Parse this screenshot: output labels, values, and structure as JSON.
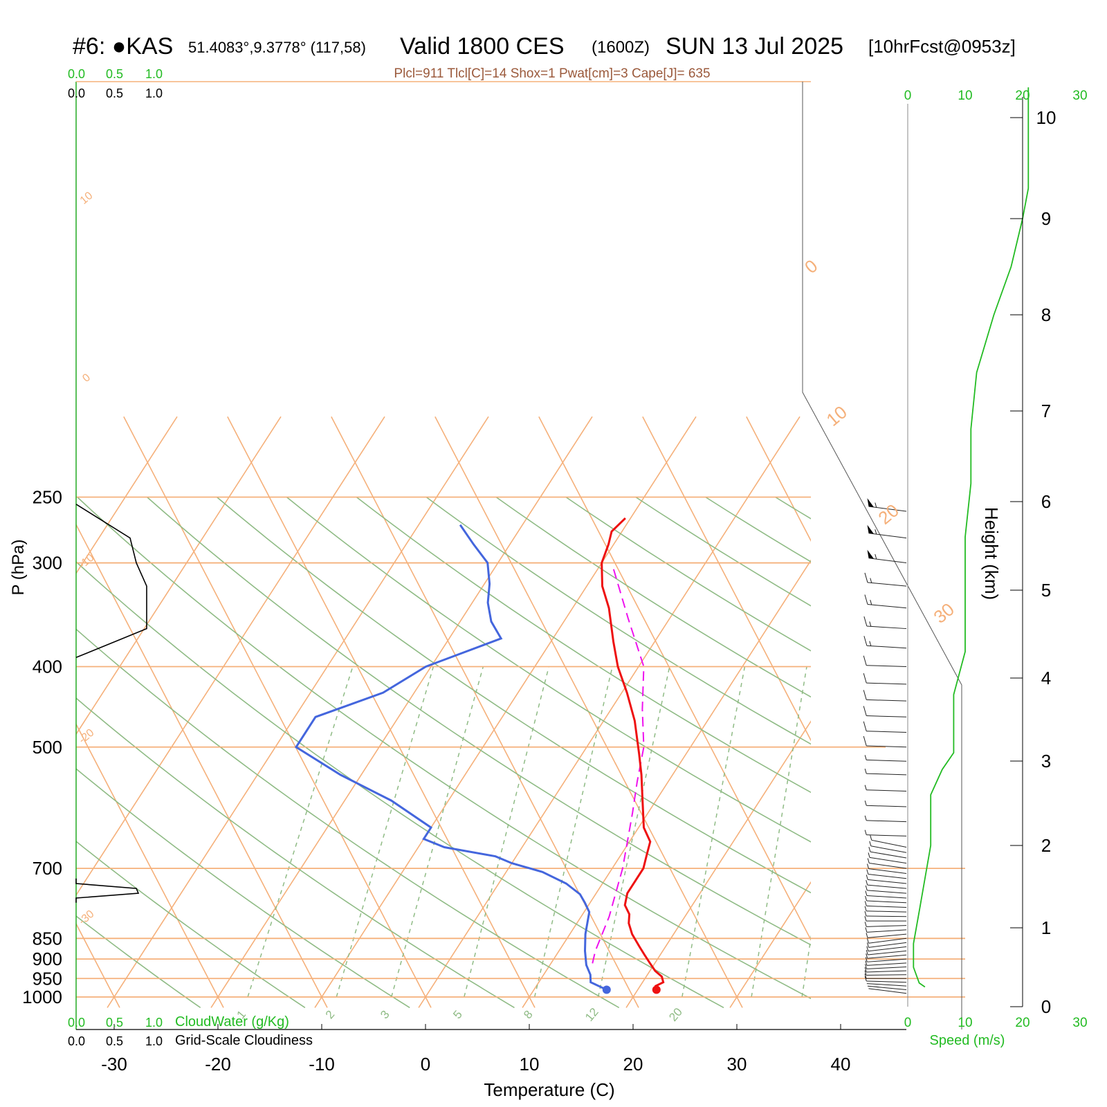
{
  "header": {
    "station": "#6: ●KAS",
    "coords": "51.4083°,9.3778° (117,58)",
    "valid": "Valid 1800 CES",
    "utc": "(1600Z)",
    "date": "SUN 13 Jul 2025",
    "forecast": "[10hrFcst@0953z]",
    "indices": "Plcl=911 Tlcl[C]=14 Shox=1 Pwat[cm]=3 Cape[J]= 635"
  },
  "colors": {
    "temperature": "#ee1111",
    "dewpoint": "#4466dd",
    "parcel": "#ee11ee",
    "isotherm": "#f5b07a",
    "dry_adiabat": "#8fbb85",
    "wind_speed": "#22bb22",
    "cloud": "#000000"
  },
  "cloud_scale": {
    "top_green": [
      "0.0",
      "0.5",
      "1.0"
    ],
    "top_black": [
      "0.0",
      "0.5",
      "1.0"
    ],
    "bottom_green": [
      "0.0",
      "0.5",
      "1.0"
    ],
    "bottom_black": [
      "0.0",
      "0.5",
      "1.0"
    ],
    "cloudwater_label": "CloudWater (g/Kg)",
    "cloudiness_label": "Grid-Scale Cloudiness"
  },
  "speed_scale": {
    "ticks": [
      "0",
      "10",
      "20",
      "30"
    ],
    "label": "Speed (m/s)"
  },
  "chart_data": {
    "type": "line",
    "subtype": "skew-T log-P sounding",
    "xlabel": "Temperature (C)",
    "ylabel": "P (hPa)",
    "y2label": "Height (km)",
    "x_ticks": [
      "-30",
      "-20",
      "-10",
      "0",
      "10",
      "20",
      "30",
      "40"
    ],
    "y_ticks": [
      "250",
      "300",
      "400",
      "500",
      "700",
      "850",
      "900",
      "950",
      "1000"
    ],
    "height_ticks": [
      "0",
      "1",
      "2",
      "3",
      "4",
      "5",
      "6",
      "7",
      "8",
      "9",
      "10"
    ],
    "isotherm_labels": [
      "10",
      "0",
      "-10",
      "-20",
      "-30",
      "0",
      "10",
      "20",
      "30"
    ],
    "mixing_ratio_labels": [
      "1",
      "2",
      "3",
      "5",
      "8",
      "12",
      "20"
    ],
    "xlim": [
      -33,
      36
    ],
    "ylim": [
      1030,
      250
    ],
    "series": [
      {
        "key": "temperature",
        "points": [
          [
            21.8,
            980
          ],
          [
            21.5,
            970
          ],
          [
            22.0,
            960
          ],
          [
            21.5,
            945
          ],
          [
            20.5,
            930
          ],
          [
            19.5,
            910
          ],
          [
            18.5,
            890
          ],
          [
            17.5,
            870
          ],
          [
            16.0,
            840
          ],
          [
            15.0,
            815
          ],
          [
            14.5,
            795
          ],
          [
            13.5,
            775
          ],
          [
            13.0,
            750
          ],
          [
            13.0,
            725
          ],
          [
            13.0,
            700
          ],
          [
            12.5,
            675
          ],
          [
            12.0,
            650
          ],
          [
            10.5,
            625
          ],
          [
            8.5,
            575
          ],
          [
            7.0,
            540
          ],
          [
            5.5,
            510
          ],
          [
            3.0,
            465
          ],
          [
            0.5,
            430
          ],
          [
            -2.0,
            400
          ],
          [
            -4.0,
            373
          ],
          [
            -6.5,
            340
          ],
          [
            -8.5,
            320
          ],
          [
            -10.0,
            300
          ],
          [
            -10.5,
            285
          ],
          [
            -11.0,
            275
          ],
          [
            -10.5,
            265
          ]
        ]
      },
      {
        "key": "dewpoint",
        "points": [
          [
            17.0,
            980
          ],
          [
            16.5,
            975
          ],
          [
            15.5,
            965
          ],
          [
            15.0,
            960
          ],
          [
            14.5,
            940
          ],
          [
            13.5,
            915
          ],
          [
            12.5,
            880
          ],
          [
            11.5,
            840
          ],
          [
            10.5,
            790
          ],
          [
            9.5,
            770
          ],
          [
            8.5,
            752
          ],
          [
            6.5,
            730
          ],
          [
            3.5,
            707
          ],
          [
            0.0,
            690
          ],
          [
            -2.0,
            677
          ],
          [
            -7.5,
            660
          ],
          [
            -10.0,
            645
          ],
          [
            -10.0,
            625
          ],
          [
            -15.5,
            580
          ],
          [
            -22.0,
            540
          ],
          [
            -28.0,
            500
          ],
          [
            -28.0,
            460
          ],
          [
            -23.0,
            430
          ],
          [
            -20.5,
            400
          ],
          [
            -15.0,
            370
          ],
          [
            -17.0,
            353
          ],
          [
            -18.5,
            335
          ],
          [
            -19.5,
            318
          ],
          [
            -21.0,
            300
          ],
          [
            -23.5,
            285
          ],
          [
            -26.0,
            270
          ]
        ]
      },
      {
        "key": "parcel",
        "points": [
          [
            14.0,
            911
          ],
          [
            13.5,
            880
          ],
          [
            12.7,
            800
          ],
          [
            11.0,
            700
          ],
          [
            9.8,
            650
          ],
          [
            8.5,
            600
          ],
          [
            7.0,
            550
          ],
          [
            5.5,
            500
          ],
          [
            3.0,
            450
          ],
          [
            0.5,
            400
          ],
          [
            -4.0,
            350
          ],
          [
            -8.5,
            305
          ]
        ]
      }
    ],
    "wind_barbs": [
      {
        "p": 990,
        "dir": 290,
        "spd": 3
      },
      {
        "p": 980,
        "dir": 285,
        "spd": 4
      },
      {
        "p": 970,
        "dir": 280,
        "spd": 4
      },
      {
        "p": 960,
        "dir": 275,
        "spd": 5
      },
      {
        "p": 950,
        "dir": 270,
        "spd": 5
      },
      {
        "p": 940,
        "dir": 268,
        "spd": 5
      },
      {
        "p": 930,
        "dir": 265,
        "spd": 5
      },
      {
        "p": 920,
        "dir": 262,
        "spd": 5
      },
      {
        "p": 910,
        "dir": 260,
        "spd": 5
      },
      {
        "p": 900,
        "dir": 258,
        "spd": 5
      },
      {
        "p": 890,
        "dir": 256,
        "spd": 5
      },
      {
        "p": 880,
        "dir": 254,
        "spd": 5
      },
      {
        "p": 870,
        "dir": 252,
        "spd": 5
      },
      {
        "p": 860,
        "dir": 250,
        "spd": 5
      },
      {
        "p": 850,
        "dir": 250,
        "spd": 5
      },
      {
        "p": 840,
        "dir": 255,
        "spd": 5
      },
      {
        "p": 830,
        "dir": 260,
        "spd": 5
      },
      {
        "p": 820,
        "dir": 265,
        "spd": 5
      },
      {
        "p": 810,
        "dir": 270,
        "spd": 5
      },
      {
        "p": 800,
        "dir": 272,
        "spd": 5
      },
      {
        "p": 790,
        "dir": 274,
        "spd": 5
      },
      {
        "p": 780,
        "dir": 276,
        "spd": 5
      },
      {
        "p": 770,
        "dir": 278,
        "spd": 5
      },
      {
        "p": 760,
        "dir": 280,
        "spd": 5
      },
      {
        "p": 750,
        "dir": 282,
        "spd": 5
      },
      {
        "p": 740,
        "dir": 284,
        "spd": 5
      },
      {
        "p": 730,
        "dir": 286,
        "spd": 5
      },
      {
        "p": 720,
        "dir": 288,
        "spd": 5
      },
      {
        "p": 710,
        "dir": 290,
        "spd": 5
      },
      {
        "p": 700,
        "dir": 292,
        "spd": 5
      },
      {
        "p": 690,
        "dir": 294,
        "spd": 5
      },
      {
        "p": 680,
        "dir": 296,
        "spd": 5
      },
      {
        "p": 670,
        "dir": 298,
        "spd": 5
      },
      {
        "p": 660,
        "dir": 300,
        "spd": 5
      },
      {
        "p": 640,
        "dir": 275,
        "spd": 8
      },
      {
        "p": 615,
        "dir": 275,
        "spd": 8
      },
      {
        "p": 590,
        "dir": 275,
        "spd": 8
      },
      {
        "p": 565,
        "dir": 275,
        "spd": 8
      },
      {
        "p": 540,
        "dir": 275,
        "spd": 8
      },
      {
        "p": 520,
        "dir": 275,
        "spd": 8
      },
      {
        "p": 500,
        "dir": 275,
        "spd": 10
      },
      {
        "p": 480,
        "dir": 275,
        "spd": 10
      },
      {
        "p": 460,
        "dir": 275,
        "spd": 10
      },
      {
        "p": 440,
        "dir": 275,
        "spd": 10
      },
      {
        "p": 420,
        "dir": 275,
        "spd": 12
      },
      {
        "p": 400,
        "dir": 275,
        "spd": 12
      },
      {
        "p": 380,
        "dir": 280,
        "spd": 15
      },
      {
        "p": 360,
        "dir": 280,
        "spd": 15
      },
      {
        "p": 340,
        "dir": 285,
        "spd": 18
      },
      {
        "p": 320,
        "dir": 285,
        "spd": 18
      },
      {
        "p": 300,
        "dir": 290,
        "spd": 55
      },
      {
        "p": 280,
        "dir": 290,
        "spd": 55
      },
      {
        "p": 260,
        "dir": 290,
        "spd": 55
      }
    ],
    "wind_speed_profile": [
      [
        0.25,
        3
      ],
      [
        0.3,
        2
      ],
      [
        0.5,
        1
      ],
      [
        0.8,
        1
      ],
      [
        1.2,
        2
      ],
      [
        1.6,
        3
      ],
      [
        2.0,
        4
      ],
      [
        2.3,
        4
      ],
      [
        2.6,
        4
      ],
      [
        2.9,
        6
      ],
      [
        3.1,
        8
      ],
      [
        3.3,
        8
      ],
      [
        3.8,
        8
      ],
      [
        4.3,
        10
      ],
      [
        4.8,
        10
      ],
      [
        5.6,
        10
      ],
      [
        6.2,
        11
      ],
      [
        6.8,
        11
      ],
      [
        7.4,
        12
      ],
      [
        8.0,
        15
      ],
      [
        8.5,
        18
      ],
      [
        9.0,
        20
      ],
      [
        9.3,
        21
      ],
      [
        9.6,
        21
      ],
      [
        10.0,
        21
      ],
      [
        10.3,
        21
      ]
    ],
    "cloudiness_profile": [
      [
        255,
        0
      ],
      [
        280,
        0.52
      ],
      [
        300,
        0.58
      ],
      [
        320,
        0.68
      ],
      [
        360,
        0.68
      ],
      [
        370,
        0.45
      ],
      [
        390,
        0
      ],
      [
        390,
        0
      ],
      [
        720,
        0
      ],
      [
        730,
        0
      ],
      [
        740,
        0.58
      ],
      [
        750,
        0.6
      ],
      [
        760,
        0
      ],
      [
        770,
        0
      ]
    ]
  }
}
